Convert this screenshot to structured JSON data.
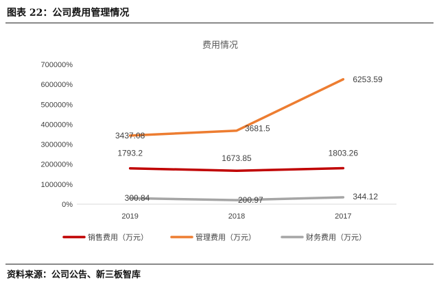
{
  "figure": {
    "caption": "图表 22：公司费用管理情况",
    "source": "资料来源：公司公告、新三板智库"
  },
  "chart_data": {
    "type": "line",
    "title": "费用情况",
    "categories": [
      "2019",
      "2018",
      "2017"
    ],
    "y_ticks": [
      "700000%",
      "600000%",
      "500000%",
      "400000%",
      "300000%",
      "200000%",
      "100000%",
      "0%"
    ],
    "ylim": [
      0,
      7000
    ],
    "legend_position": "bottom",
    "series": [
      {
        "name": "销售费用（万元）",
        "values": [
          1793.2,
          1673.85,
          1803.26
        ],
        "labels": [
          "1793.2",
          "1673.85",
          "1803.26"
        ],
        "color": "#C00000"
      },
      {
        "name": "管理费用（万元）",
        "values": [
          3437.08,
          3681.5,
          6253.59
        ],
        "labels": [
          "3437.08",
          "3681.5",
          "6253.59"
        ],
        "color": "#ED7D31"
      },
      {
        "name": "财务费用（万元）",
        "values": [
          300.84,
          200.97,
          344.12
        ],
        "labels": [
          "300.84",
          "200.97",
          "344.12"
        ],
        "color": "#A5A5A5"
      }
    ]
  }
}
